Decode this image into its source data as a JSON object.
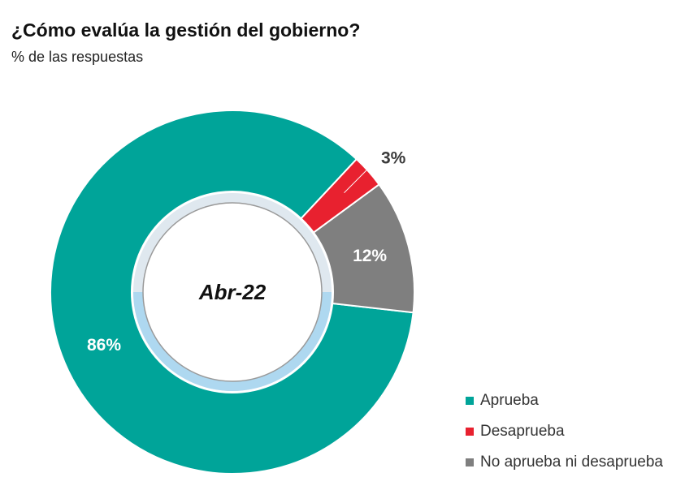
{
  "title": "¿Cómo evalúa la gestión del gobierno?",
  "subtitle": "% de las respuestas",
  "chart_data": {
    "type": "pie",
    "center_label": "Abr-22",
    "series": [
      {
        "name": "Aprueba",
        "value": 86,
        "label": "86%",
        "color": "#00a499"
      },
      {
        "name": "Desaprueba",
        "value": 3,
        "label": "3%",
        "color": "#e8212f"
      },
      {
        "name": "No aprueba ni desaprueba",
        "value": 12,
        "label": "12%",
        "color": "#7f7f7f"
      }
    ],
    "legend_position": "bottom-right"
  }
}
